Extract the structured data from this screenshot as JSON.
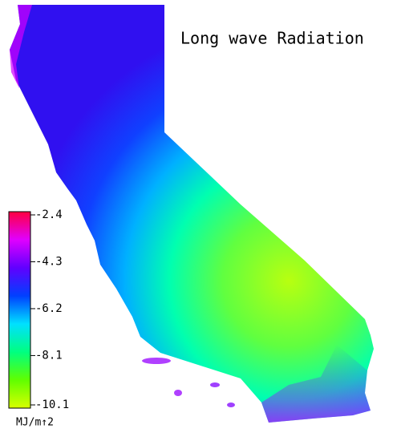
{
  "map": {
    "title": "Long wave Radiation",
    "colorbar": {
      "label": "MJ/m↑2",
      "lim": [
        -10.1,
        -2.4
      ],
      "ticks": [
        -2.4,
        -4.3,
        -6.2,
        -8.1,
        -10.1
      ],
      "colors": [
        "#d8ff00",
        "#60ff00",
        "#00ff80",
        "#00e0ff",
        "#0040ff",
        "#6000ff",
        "#e000ff",
        "#ff0040"
      ]
    }
  }
}
